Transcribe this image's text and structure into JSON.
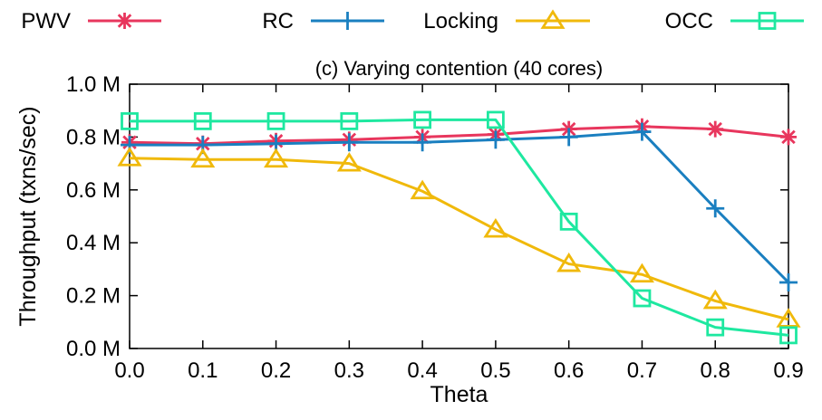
{
  "chart_data": {
    "type": "line",
    "title": "(c) Varying contention (40 cores)",
    "xlabel": "Theta",
    "ylabel": "Throughput (txns/sec)",
    "x": [
      0.0,
      0.1,
      0.2,
      0.3,
      0.4,
      0.5,
      0.6,
      0.7,
      0.8,
      0.9
    ],
    "x_tick_labels": [
      "0.0",
      "0.1",
      "0.2",
      "0.3",
      "0.4",
      "0.5",
      "0.6",
      "0.7",
      "0.8",
      "0.9"
    ],
    "xlim": [
      0.0,
      0.9
    ],
    "ylim": [
      0.0,
      1.0
    ],
    "y_ticks": [
      0.0,
      0.2,
      0.4,
      0.6,
      0.8,
      1.0
    ],
    "y_tick_labels": [
      "0.0 M",
      "0.2 M",
      "0.4 M",
      "0.6 M",
      "0.8 M",
      "1.0 M"
    ],
    "grid": false,
    "legend_position": "top, outside plot area",
    "series": [
      {
        "name": "PWV",
        "color": "#e8365d",
        "marker": "asterisk",
        "values": [
          0.78,
          0.775,
          0.785,
          0.79,
          0.8,
          0.81,
          0.83,
          0.84,
          0.83,
          0.8
        ]
      },
      {
        "name": "RC",
        "color": "#1a7fc0",
        "marker": "plus",
        "values": [
          0.77,
          0.77,
          0.775,
          0.78,
          0.78,
          0.79,
          0.8,
          0.82,
          0.53,
          0.25
        ]
      },
      {
        "name": "Locking",
        "color": "#f0b90b",
        "marker": "triangle",
        "values": [
          0.72,
          0.715,
          0.715,
          0.7,
          0.595,
          0.45,
          0.32,
          0.28,
          0.18,
          0.11
        ]
      },
      {
        "name": "OCC",
        "color": "#1ee8a0",
        "marker": "square",
        "values": [
          0.86,
          0.86,
          0.86,
          0.86,
          0.865,
          0.865,
          0.48,
          0.19,
          0.08,
          0.05
        ]
      }
    ]
  }
}
